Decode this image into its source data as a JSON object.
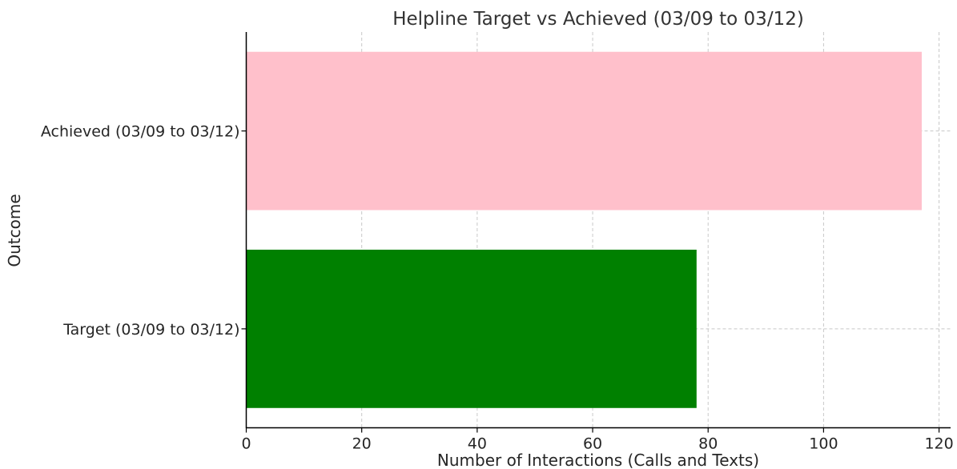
{
  "chart_data": {
    "type": "bar",
    "orientation": "horizontal",
    "title": "Helpline Target vs Achieved (03/09 to 03/12)",
    "xlabel": "Number of Interactions (Calls and Texts)",
    "ylabel": "Outcome",
    "categories": [
      "Target (03/09 to 03/12)",
      "Achieved (03/09 to 03/12)"
    ],
    "values": [
      78,
      117
    ],
    "colors": [
      "#008000",
      "#ffc0cb"
    ],
    "xlim": [
      0,
      122
    ],
    "xticks": [
      0,
      20,
      40,
      60,
      80,
      100,
      120
    ],
    "grid": true
  }
}
